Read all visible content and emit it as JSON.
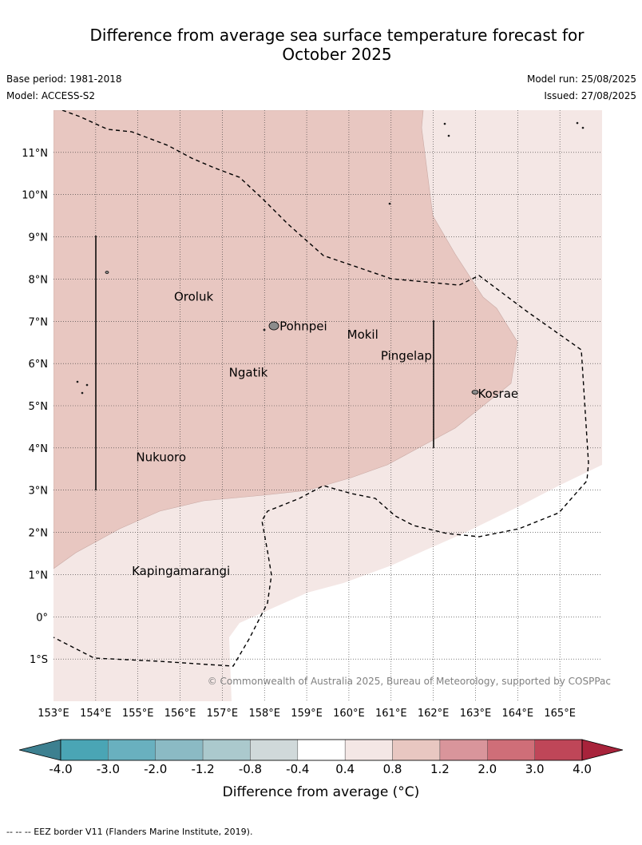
{
  "title_line1": "Difference from average sea surface temperature forecast for",
  "title_line2": "October 2025",
  "meta": {
    "base_period": "Base period: 1981-2018",
    "model": "Model: ACCESS-S2",
    "model_run": "Model run: 25/08/2025",
    "issued": "Issued: 27/08/2025"
  },
  "map": {
    "lon_range": [
      153,
      166
    ],
    "lat_range": [
      -2,
      12
    ],
    "lon_ticks": [
      "153°E",
      "154°E",
      "155°E",
      "156°E",
      "157°E",
      "158°E",
      "159°E",
      "160°E",
      "161°E",
      "162°E",
      "163°E",
      "164°E",
      "165°E"
    ],
    "lat_ticks": [
      "1°S",
      "0°",
      "1°N",
      "2°N",
      "3°N",
      "4°N",
      "5°N",
      "6°N",
      "7°N",
      "8°N",
      "9°N",
      "10°N",
      "11°N"
    ],
    "places": [
      {
        "name": "Oroluk",
        "lon": 155.8,
        "lat": 7.6
      },
      {
        "name": "Pohnpei",
        "lon": 158.3,
        "lat": 6.9
      },
      {
        "name": "Mokil",
        "lon": 159.9,
        "lat": 6.7
      },
      {
        "name": "Pingelap",
        "lon": 160.7,
        "lat": 6.2
      },
      {
        "name": "Ngatik",
        "lon": 157.1,
        "lat": 5.8
      },
      {
        "name": "Kosrae",
        "lon": 163.0,
        "lat": 5.3
      },
      {
        "name": "Nukuoro",
        "lon": 154.9,
        "lat": 3.8
      },
      {
        "name": "Kapingamarangi",
        "lon": 154.8,
        "lat": 1.1
      }
    ],
    "copyright": "© Commonwealth of Australia 2025, Bureau of Meteorology, supported by COSPPac",
    "colors": {
      "anomaly_04_08": "#f4e7e5",
      "anomaly_08_12": "#e8c7c1"
    }
  },
  "colorbar": {
    "ticks": [
      "-4.0",
      "-3.0",
      "-2.0",
      "-1.2",
      "-0.8",
      "-0.4",
      "0.4",
      "0.8",
      "1.2",
      "2.0",
      "3.0",
      "4.0"
    ],
    "colors": [
      "#4aa5b5",
      "#69b0bf",
      "#8bbac4",
      "#abc9cd",
      "#d0d9da",
      "#ffffff",
      "#f4e7e5",
      "#e8c7c1",
      "#d9959b",
      "#cf6e78",
      "#bf4658"
    ],
    "under_color": "#3d8090",
    "over_color": "#a8233b",
    "label": "Difference from average (°C)"
  },
  "footer": "--  --  -- EEZ border V11 (Flanders Marine Institute, 2019)."
}
